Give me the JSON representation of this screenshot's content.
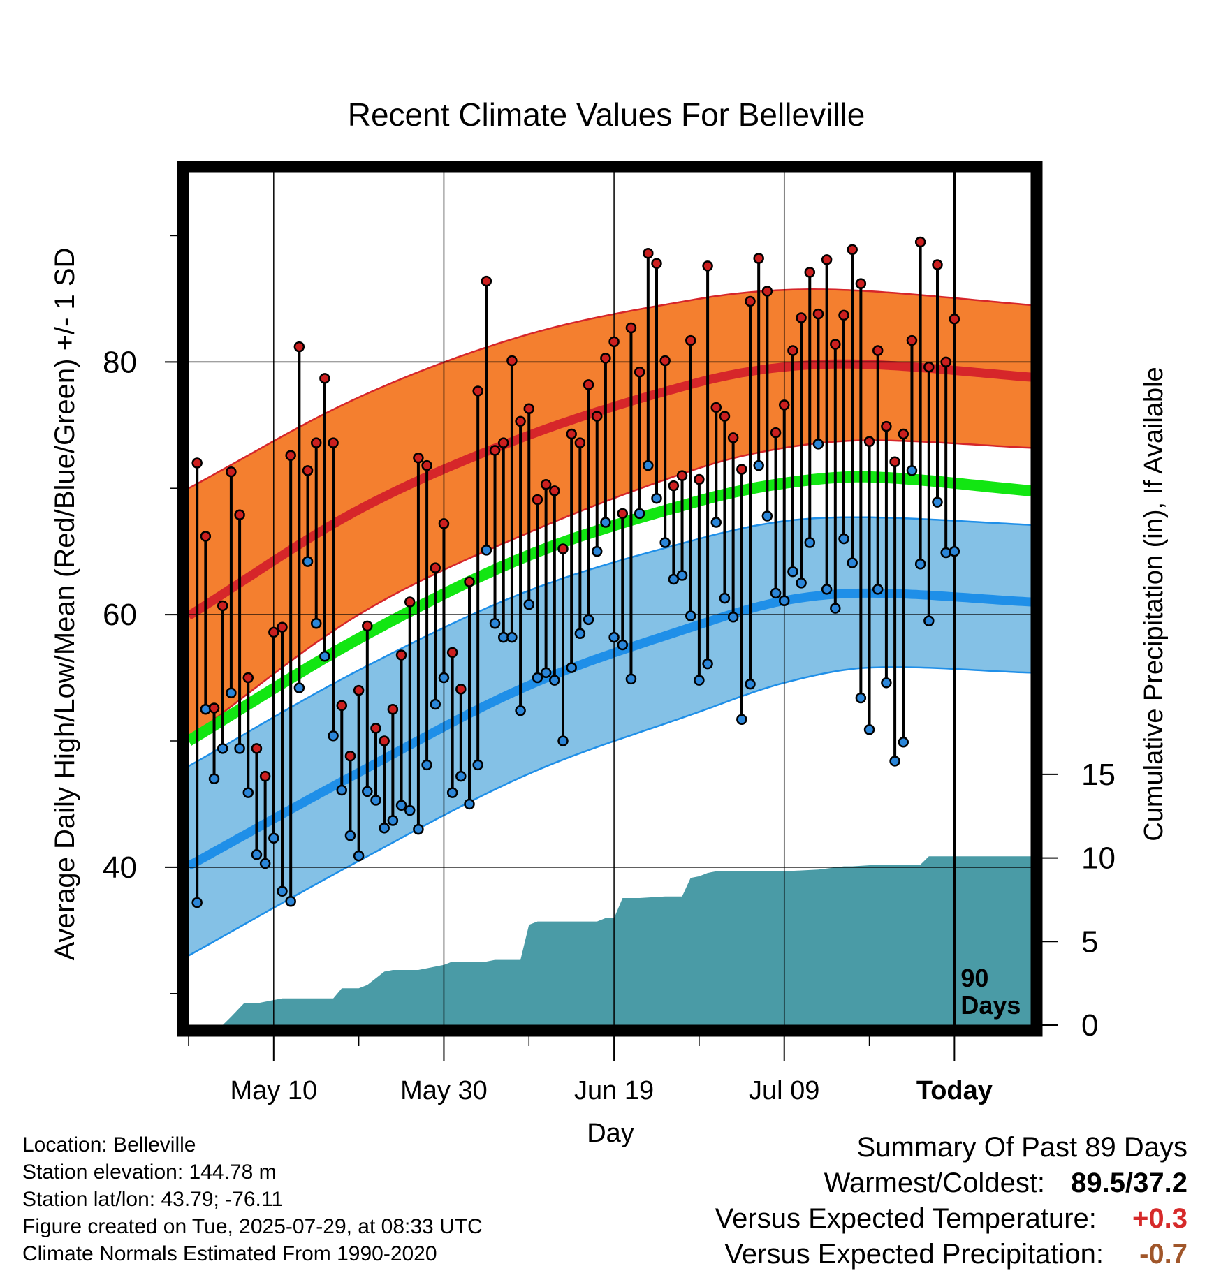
{
  "chart_data": {
    "type": "line",
    "title": "Recent Climate Values For Belleville",
    "xlabel": "Day",
    "ylabel_left": "Average Daily High/Low/Mean (Red/Blue/Green) +/- 1 SD",
    "ylabel_right": "Cumulative Precipitation (in), If Available",
    "x_tick_labels": [
      "May 10",
      "May 30",
      "Jun 19",
      "Jul 09",
      "Today"
    ],
    "x_tick_days": [
      10,
      30,
      50,
      70,
      90
    ],
    "x_range": [
      0,
      99
    ],
    "y_left_ticks": [
      40,
      60,
      80
    ],
    "y_left_range": [
      27.5,
      95
    ],
    "y_right_ticks": [
      0,
      5,
      10,
      15
    ],
    "y_right_range": [
      0,
      51
    ],
    "marker_label": "90 Days",
    "grid": true,
    "normals": {
      "x": [
        0,
        20,
        40,
        60,
        70,
        80,
        99
      ],
      "high_mean": [
        59.9,
        68.3,
        74.2,
        78.4,
        79.6,
        79.8,
        78.8
      ],
      "high_upper": [
        70.0,
        77.2,
        82.2,
        85.0,
        85.7,
        85.6,
        84.5
      ],
      "high_lower": [
        50.2,
        60.0,
        66.5,
        71.6,
        73.2,
        73.8,
        73.2
      ],
      "mean": [
        50.0,
        58.1,
        64.7,
        69.0,
        70.4,
        70.9,
        69.8
      ],
      "low_mean": [
        40.1,
        47.5,
        54.4,
        59.2,
        61.1,
        61.7,
        61.0
      ],
      "low_upper": [
        48.0,
        55.6,
        61.9,
        66.0,
        67.4,
        67.7,
        67.1
      ],
      "low_lower": [
        33.0,
        40.5,
        47.4,
        52.3,
        54.6,
        55.8,
        55.4
      ]
    },
    "daily": {
      "high": [
        72.0,
        66.2,
        52.6,
        60.7,
        71.3,
        67.9,
        55.0,
        49.4,
        47.2,
        58.6,
        59.0,
        72.6,
        81.2,
        71.4,
        73.6,
        78.7,
        73.6,
        52.8,
        48.8,
        54.0,
        59.1,
        51.0,
        50.0,
        52.5,
        56.8,
        61.0,
        72.4,
        71.8,
        63.7,
        67.2,
        57.0,
        54.1,
        62.6,
        77.7,
        86.4,
        73.0,
        73.6,
        80.1,
        75.3,
        76.3,
        69.1,
        70.3,
        69.8,
        65.2,
        74.3,
        73.6,
        78.2,
        75.7,
        80.3,
        81.6,
        68.0,
        82.7,
        79.2,
        88.6,
        87.8,
        80.1,
        70.2,
        71.0,
        81.7,
        70.7,
        87.6,
        76.4,
        75.7,
        74.0,
        71.5,
        84.8,
        88.2,
        85.6,
        74.4,
        76.6,
        80.9,
        83.5,
        87.1,
        83.8,
        88.1,
        81.4,
        83.7,
        88.9,
        86.2,
        73.7,
        80.9,
        74.9,
        72.1,
        74.3,
        81.7,
        89.5,
        79.6,
        87.7,
        80.0,
        83.4
      ],
      "low": [
        37.2,
        52.5,
        47.0,
        49.4,
        53.8,
        49.4,
        45.9,
        41.0,
        40.3,
        42.3,
        38.1,
        37.3,
        54.2,
        64.2,
        59.3,
        56.7,
        50.4,
        46.1,
        42.5,
        40.9,
        46.0,
        45.3,
        43.1,
        43.7,
        44.9,
        44.5,
        43.0,
        48.1,
        52.9,
        55.0,
        45.9,
        47.2,
        45.0,
        48.1,
        65.1,
        59.3,
        58.2,
        58.2,
        52.4,
        60.8,
        55.0,
        55.4,
        54.8,
        50.0,
        55.8,
        58.5,
        59.6,
        65.0,
        67.3,
        58.2,
        57.6,
        54.9,
        68.0,
        71.8,
        69.2,
        65.7,
        62.8,
        63.1,
        59.9,
        54.8,
        56.1,
        67.3,
        61.3,
        59.8,
        51.7,
        54.5,
        71.8,
        67.8,
        61.7,
        61.1,
        63.4,
        62.5,
        65.7,
        73.5,
        62.0,
        60.5,
        66.0,
        64.1,
        53.4,
        50.9,
        62.0,
        54.6,
        48.4,
        49.9,
        71.4,
        64.0,
        59.5,
        68.9,
        64.9,
        65.0
      ]
    },
    "precip": {
      "x": [
        0,
        4,
        5,
        6.5,
        8,
        10,
        11,
        12,
        13,
        14,
        17,
        18,
        20,
        21,
        23,
        24,
        25,
        27,
        28,
        30,
        31,
        33,
        35,
        36,
        39,
        40,
        41,
        44,
        48,
        49,
        50,
        51,
        52,
        53,
        56,
        57,
        58,
        59,
        60,
        61,
        62,
        70,
        74,
        77,
        78,
        81,
        82,
        86,
        87,
        99
      ],
      "y": [
        0,
        0,
        0.5,
        1.3,
        1.3,
        1.5,
        1.6,
        1.6,
        1.6,
        1.6,
        1.6,
        2.2,
        2.2,
        2.4,
        3.2,
        3.3,
        3.3,
        3.3,
        3.4,
        3.6,
        3.8,
        3.8,
        3.8,
        3.9,
        3.9,
        6.0,
        6.2,
        6.2,
        6.2,
        6.4,
        6.4,
        7.6,
        7.6,
        7.6,
        7.7,
        7.7,
        7.7,
        8.8,
        8.9,
        9.1,
        9.2,
        9.2,
        9.3,
        9.5,
        9.5,
        9.6,
        9.6,
        9.6,
        10.1,
        10.1
      ]
    }
  },
  "colors": {
    "high_band": "#f47f2f",
    "high_line": "#d6262a",
    "low_band": "#84c1e6",
    "low_line": "#1f8fe8",
    "mean_line": "#12e612",
    "precip_fill": "#4a9ba6",
    "high_dot": "#cc1f1f",
    "low_dot": "#2b86d9",
    "plus_value": "#d62a2a",
    "minus_value": "#a0562a"
  },
  "info": {
    "location": "Location: Belleville",
    "elevation": "Station elevation: 144.78 m",
    "latlon": "Station lat/lon: 43.79; -76.11",
    "created": "Figure created on Tue, 2025-07-29, at 08:33 UTC",
    "normals": "Climate Normals Estimated From 1990-2020"
  },
  "summary": {
    "title": "Summary Of Past 89 Days",
    "warm_cold_label": "Warmest/Coldest:",
    "warm_cold_value": "89.5/37.2",
    "temp_label": "Versus Expected Temperature:",
    "temp_value": "+0.3",
    "precip_label": "Versus Expected Precipitation:",
    "precip_value": "-0.7"
  }
}
